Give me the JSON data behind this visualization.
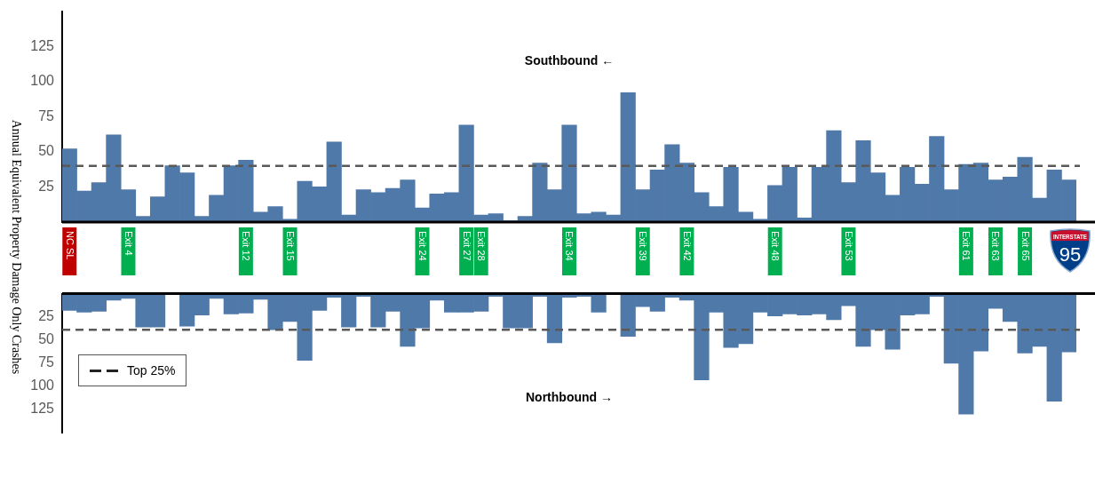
{
  "chart_data": [
    {
      "type": "bar",
      "title": "Southbound ←",
      "ylabel": "Annual Equivalent Property Damage Only Crashes",
      "categories": [
        "NC SL",
        null,
        null,
        null,
        "Exit 4",
        null,
        null,
        null,
        null,
        null,
        null,
        null,
        "Exit 12",
        null,
        null,
        "Exit 15",
        null,
        null,
        null,
        null,
        null,
        null,
        null,
        null,
        "Exit 24",
        null,
        null,
        "Exit 27",
        "Exit 28",
        null,
        null,
        null,
        null,
        null,
        "Exit 34",
        null,
        null,
        null,
        null,
        "Exit 39",
        null,
        null,
        "Exit 42",
        null,
        null,
        null,
        null,
        null,
        "Exit 48",
        null,
        null,
        null,
        null,
        "Exit 53",
        null,
        null,
        null,
        null,
        null,
        null,
        null,
        "Exit 61",
        null,
        "Exit 63",
        null,
        "Exit 65",
        null,
        null,
        null
      ],
      "values": [
        52,
        22,
        28,
        62,
        23,
        4,
        18,
        40,
        35,
        4,
        19,
        40,
        44,
        7,
        11,
        2,
        29,
        25,
        57,
        5,
        23,
        21,
        24,
        30,
        10,
        20,
        21,
        69,
        5,
        6,
        1,
        4,
        42,
        23,
        69,
        6,
        7,
        5,
        92,
        23,
        37,
        55,
        42,
        21,
        11,
        39,
        7,
        2,
        26,
        39,
        3,
        39,
        65,
        28,
        58,
        35,
        19,
        39,
        27,
        61,
        23,
        41,
        42,
        30,
        32,
        46,
        17,
        37,
        30
      ],
      "color": "#4f79a8",
      "ylim": [
        0,
        150
      ],
      "yticks": [
        25,
        50,
        75,
        100,
        125
      ],
      "ref_lines": [
        {
          "axis": "y",
          "value": 40,
          "color": "#595959",
          "line_style": "dashed"
        }
      ],
      "annotations": [
        "INTERSTATE",
        "95"
      ]
    },
    {
      "type": "bar",
      "title": "Northbound →",
      "categories": [
        null,
        null,
        null,
        null,
        null,
        null,
        null,
        null,
        null,
        null,
        null,
        null,
        null,
        null,
        null,
        null,
        null,
        null,
        null,
        null,
        null,
        null,
        null,
        null,
        null,
        null,
        null,
        null,
        null,
        null,
        null,
        null,
        null,
        null,
        null,
        null,
        null,
        null,
        null,
        null,
        null,
        null,
        null,
        null,
        null,
        null,
        null,
        null,
        null,
        null,
        null,
        null,
        null,
        null,
        null,
        null,
        null,
        null,
        null,
        null,
        null,
        null,
        null,
        null,
        null,
        null,
        null,
        null,
        null
      ],
      "values": [
        18,
        20,
        19,
        7,
        5,
        36,
        36,
        0,
        35,
        23,
        5,
        22,
        21,
        6,
        39,
        30,
        72,
        18,
        4,
        36,
        3,
        36,
        19,
        57,
        37,
        7,
        20,
        20,
        19,
        3,
        37,
        37,
        3,
        53,
        4,
        3,
        20,
        0,
        46,
        14,
        19,
        4,
        7,
        93,
        20,
        58,
        54,
        20,
        24,
        22,
        23,
        22,
        28,
        13,
        57,
        39,
        60,
        23,
        22,
        3,
        75,
        130,
        62,
        16,
        30,
        64,
        57,
        116,
        63
      ],
      "color": "#4f79a8",
      "ylim": [
        150,
        0
      ],
      "yticks": [
        25,
        50,
        75,
        100,
        125
      ],
      "tick_labels": "y",
      "ref_lines": [
        {
          "axis": "y",
          "value": 39,
          "label": "Top 25%",
          "color": "#595959",
          "line_style": "dashed"
        }
      ],
      "legend": "bottom left"
    }
  ]
}
